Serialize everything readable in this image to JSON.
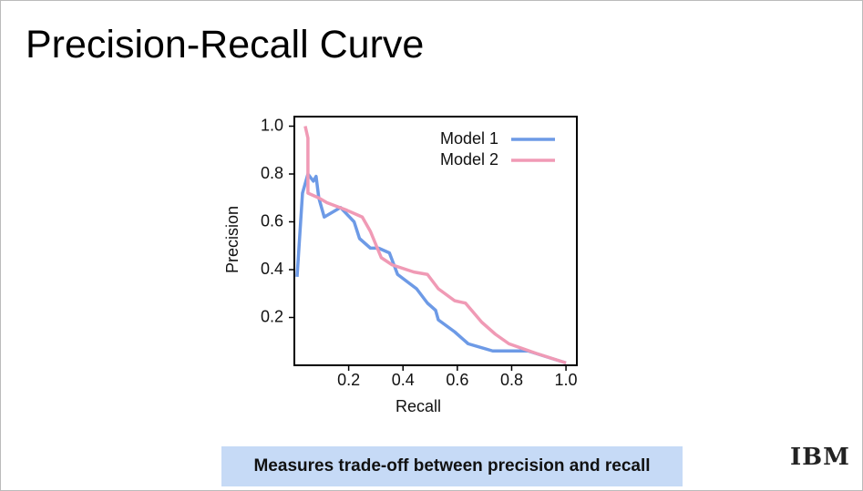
{
  "slide_title": "Precision-Recall Curve",
  "chart_data": {
    "type": "line",
    "x_label": "Recall",
    "y_label": "Precision",
    "xlim": [
      0,
      1.04
    ],
    "ylim": [
      0,
      1.04
    ],
    "xticks": [
      0.2,
      0.4,
      0.6,
      0.8,
      {
        "value": 1,
        "label": "1.0"
      }
    ],
    "yticks": [
      0.2,
      0.4,
      0.6,
      0.8,
      {
        "value": 1,
        "label": "1.0"
      }
    ],
    "legend": "upper-right",
    "series": [
      {
        "name": "Model 1",
        "color": "#6d9ae6",
        "x": [
          0.01,
          0.03,
          0.05,
          0.07,
          0.08,
          0.09,
          0.11,
          0.17,
          0.22,
          0.24,
          0.28,
          0.31,
          0.35,
          0.38,
          0.45,
          0.49,
          0.52,
          0.53,
          0.59,
          0.64,
          0.73,
          0.86,
          1.0
        ],
        "values": [
          0.37,
          0.72,
          0.8,
          0.77,
          0.79,
          0.7,
          0.62,
          0.66,
          0.6,
          0.53,
          0.49,
          0.49,
          0.47,
          0.38,
          0.32,
          0.26,
          0.23,
          0.19,
          0.14,
          0.09,
          0.06,
          0.06,
          0.01
        ]
      },
      {
        "name": "Model 2",
        "color": "#f09ab5",
        "x": [
          0.04,
          0.05,
          0.05,
          0.09,
          0.12,
          0.19,
          0.23,
          0.25,
          0.28,
          0.32,
          0.36,
          0.44,
          0.49,
          0.53,
          0.59,
          0.63,
          0.69,
          0.74,
          0.79,
          0.89,
          1.0
        ],
        "values": [
          1.0,
          0.95,
          0.72,
          0.7,
          0.68,
          0.65,
          0.63,
          0.62,
          0.56,
          0.45,
          0.42,
          0.39,
          0.38,
          0.32,
          0.27,
          0.26,
          0.18,
          0.13,
          0.09,
          0.05,
          0.01
        ]
      }
    ]
  },
  "callout": "Measures trade-off between precision and recall",
  "logo": "IBM"
}
